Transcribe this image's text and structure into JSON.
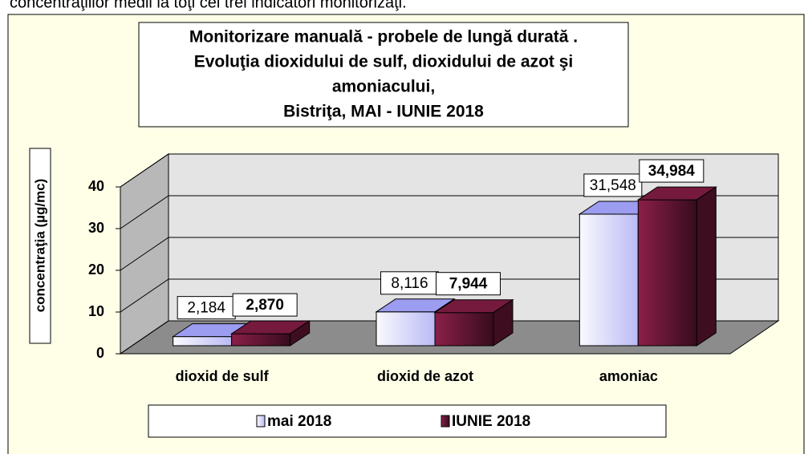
{
  "header_text": "concentraţiilor medii la toţi cei trei indicatori monitorizaţi.",
  "chart_data": {
    "type": "bar3d",
    "title_lines": [
      "Monitorizare manuală - probele de lungă durată .",
      "Evoluţia dioxidului de sulf, dioxidului de azot şi",
      "amoniacului,",
      "Bistriţa,   MAI - IUNIE 2018"
    ],
    "y_label": "concentraţia (µg/mc)",
    "categories": [
      "dioxid de sulf",
      "dioxid de azot",
      "amoniac"
    ],
    "series": [
      {
        "name": "mai 2018",
        "color": "#9c9cf0",
        "values": [
          2.184,
          8.116,
          31.548
        ],
        "value_labels": [
          "2,184",
          "8,116",
          "31,548"
        ]
      },
      {
        "name": "IUNIE 2018",
        "color": "#8a1f48",
        "values": [
          2.87,
          7.944,
          34.984
        ],
        "value_labels": [
          "2,870",
          "7,944",
          "34,984"
        ]
      }
    ],
    "ylim": [
      0,
      40
    ],
    "yticks": [
      0,
      10,
      20,
      30,
      40
    ],
    "grid": true,
    "legend": "bottom"
  }
}
